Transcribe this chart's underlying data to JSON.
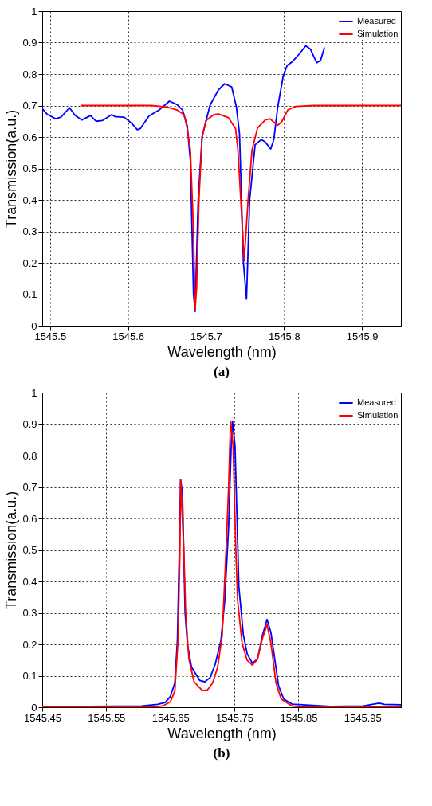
{
  "chart_data": [
    {
      "type": "line",
      "title": "(a)",
      "xlabel": "Wavelength (nm)",
      "ylabel": "Transmission(a.u.)",
      "xlim": [
        1545.49,
        1545.95
      ],
      "xticks": [
        1545.5,
        1545.6,
        1545.7,
        1545.8,
        1545.9
      ],
      "ylim": [
        0,
        1
      ],
      "yticks": [
        0,
        0.1,
        0.2,
        0.3,
        0.4,
        0.5,
        0.6,
        0.7,
        0.8,
        0.9,
        1
      ],
      "grid": true,
      "legend": "top right",
      "line_style": "solid",
      "series": [
        {
          "name": "Measured",
          "color": "#0000ff",
          "x": [
            1545.49,
            1545.496,
            1545.507,
            1545.514,
            1545.525,
            1545.532,
            1545.541,
            1545.552,
            1545.559,
            1545.567,
            1545.579,
            1545.584,
            1545.595,
            1545.604,
            1545.612,
            1545.616,
            1545.627,
            1545.64,
            1545.653,
            1545.663,
            1545.67,
            1545.676,
            1545.68,
            1545.684,
            1545.686,
            1545.69,
            1545.695,
            1545.705,
            1545.716,
            1545.724,
            1545.733,
            1545.739,
            1545.743,
            1545.748,
            1545.752,
            1545.756,
            1545.763,
            1545.771,
            1545.776,
            1545.783,
            1545.787,
            1545.792,
            1545.799,
            1545.804,
            1545.811,
            1545.819,
            1545.828,
            1545.834,
            1545.842,
            1545.847,
            1545.852
          ],
          "values": [
            0.69,
            0.673,
            0.658,
            0.663,
            0.693,
            0.669,
            0.654,
            0.668,
            0.65,
            0.652,
            0.671,
            0.664,
            0.663,
            0.645,
            0.623,
            0.627,
            0.667,
            0.686,
            0.714,
            0.703,
            0.686,
            0.635,
            0.524,
            0.1,
            0.045,
            0.4,
            0.6,
            0.7,
            0.75,
            0.769,
            0.759,
            0.695,
            0.61,
            0.2,
            0.084,
            0.4,
            0.575,
            0.592,
            0.584,
            0.562,
            0.592,
            0.695,
            0.793,
            0.827,
            0.84,
            0.862,
            0.89,
            0.879,
            0.836,
            0.844,
            0.885
          ]
        },
        {
          "name": "Simulation",
          "color": "#ff0000",
          "x": [
            1545.539,
            1545.63,
            1545.65,
            1545.663,
            1545.672,
            1545.676,
            1545.68,
            1545.684,
            1545.686,
            1545.688,
            1545.691,
            1545.695,
            1545.7,
            1545.71,
            1545.716,
            1545.729,
            1545.738,
            1545.741,
            1545.749,
            1545.754,
            1545.759,
            1545.766,
            1545.776,
            1545.782,
            1545.788,
            1545.792,
            1545.797,
            1545.805,
            1545.815,
            1545.838,
            1545.95
          ],
          "values": [
            0.7,
            0.7,
            0.695,
            0.686,
            0.67,
            0.626,
            0.558,
            0.3,
            0.05,
            0.12,
            0.4,
            0.6,
            0.652,
            0.671,
            0.673,
            0.661,
            0.626,
            0.558,
            0.207,
            0.4,
            0.558,
            0.628,
            0.654,
            0.658,
            0.645,
            0.637,
            0.648,
            0.686,
            0.697,
            0.7,
            0.7
          ]
        }
      ]
    },
    {
      "type": "line",
      "title": "(b)",
      "xlabel": "Wavelength (nm)",
      "ylabel": "Transmission(a.u.)",
      "xlim": [
        1545.45,
        1546.01
      ],
      "xticks": [
        1545.45,
        1545.55,
        1545.65,
        1545.75,
        1545.85,
        1545.95
      ],
      "ylim": [
        0,
        1
      ],
      "yticks": [
        0,
        0.1,
        0.2,
        0.3,
        0.4,
        0.5,
        0.6,
        0.7,
        0.8,
        0.9,
        1
      ],
      "grid": true,
      "legend": "top right",
      "line_style": "solid",
      "series": [
        {
          "name": "Measured",
          "color": "#0000ff",
          "x": [
            1545.45,
            1545.48,
            1545.605,
            1545.63,
            1545.642,
            1545.65,
            1545.657,
            1545.661,
            1545.664,
            1545.666,
            1545.669,
            1545.673,
            1545.677,
            1545.683,
            1545.696,
            1545.704,
            1545.712,
            1545.72,
            1545.729,
            1545.735,
            1545.741,
            1545.745,
            1545.747,
            1545.751,
            1545.755,
            1545.757,
            1545.764,
            1545.77,
            1545.778,
            1545.786,
            1545.794,
            1545.801,
            1545.807,
            1545.813,
            1545.819,
            1545.827,
            1545.84,
            1545.9,
            1545.951,
            1545.976,
            1545.984,
            1546.01
          ],
          "values": [
            0.002,
            0.002,
            0.004,
            0.009,
            0.015,
            0.034,
            0.077,
            0.213,
            0.5,
            0.724,
            0.677,
            0.3,
            0.196,
            0.128,
            0.085,
            0.081,
            0.094,
            0.136,
            0.213,
            0.34,
            0.575,
            0.83,
            0.91,
            0.83,
            0.533,
            0.383,
            0.23,
            0.17,
            0.14,
            0.153,
            0.23,
            0.279,
            0.238,
            0.153,
            0.068,
            0.026,
            0.01,
            0.003,
            0.004,
            0.013,
            0.009,
            0.008
          ]
        },
        {
          "name": "Simulation",
          "color": "#ff0000",
          "x": [
            1545.45,
            1545.62,
            1545.638,
            1545.65,
            1545.657,
            1545.662,
            1545.665,
            1545.666,
            1545.671,
            1545.674,
            1545.679,
            1545.687,
            1545.7,
            1545.708,
            1545.716,
            1545.724,
            1545.731,
            1545.737,
            1545.741,
            1545.744,
            1545.748,
            1545.752,
            1545.755,
            1545.762,
            1545.77,
            1545.778,
            1545.786,
            1545.794,
            1545.801,
            1545.807,
            1545.815,
            1545.823,
            1545.84,
            1545.86,
            1546.01
          ],
          "values": [
            0,
            0,
            0.004,
            0.017,
            0.051,
            0.213,
            0.5,
            0.721,
            0.5,
            0.298,
            0.153,
            0.081,
            0.053,
            0.055,
            0.077,
            0.128,
            0.23,
            0.5,
            0.703,
            0.91,
            0.83,
            0.516,
            0.34,
            0.204,
            0.149,
            0.134,
            0.153,
            0.221,
            0.262,
            0.204,
            0.077,
            0.026,
            0.004,
            0,
            0
          ]
        }
      ]
    }
  ]
}
